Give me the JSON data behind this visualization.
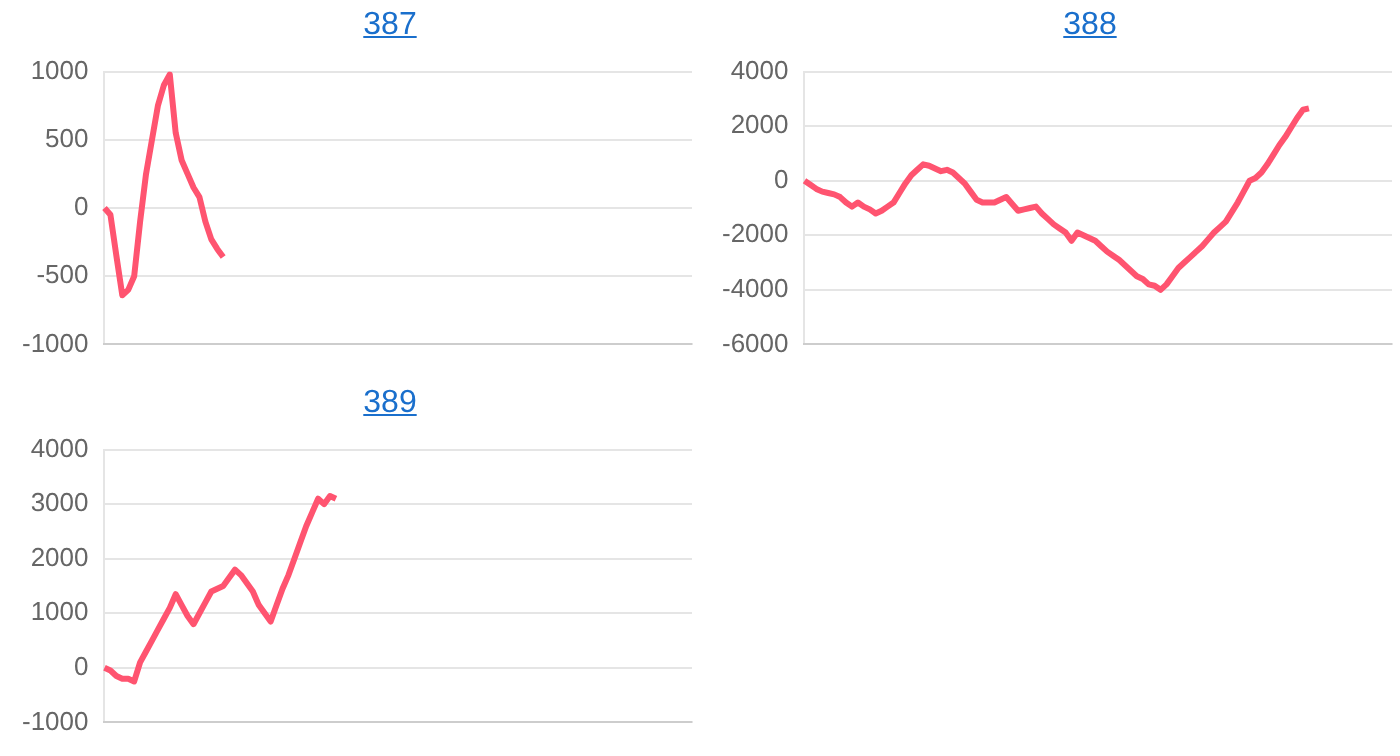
{
  "chart_data": [
    {
      "type": "line",
      "title": "387",
      "categories": [
        null,
        null,
        null,
        null,
        null,
        null,
        null,
        null,
        null,
        null,
        null,
        null,
        null,
        null,
        null,
        null,
        null,
        null,
        null,
        null,
        null,
        null,
        null,
        null,
        null,
        null,
        null,
        null,
        null,
        null,
        null,
        null,
        null,
        null,
        null,
        null,
        null,
        null,
        null,
        null,
        null,
        null,
        null,
        null,
        null,
        null,
        null,
        null,
        null,
        null,
        null,
        null,
        null,
        null,
        null,
        null,
        null,
        null,
        null,
        null,
        null,
        null,
        null,
        null,
        null,
        null,
        null,
        null,
        null,
        null,
        null,
        null,
        null,
        null,
        null,
        null,
        null,
        null,
        null,
        null,
        null,
        null,
        null,
        null,
        null,
        null,
        null,
        null,
        null,
        null,
        null,
        null,
        null,
        null,
        null,
        null,
        null,
        null,
        null,
        null
      ],
      "series": [
        {
          "color": "#ff5470",
          "values": [
            0,
            -50,
            -350,
            -640,
            -600,
            -500,
            -100,
            250,
            500,
            750,
            900,
            980,
            550,
            350,
            250,
            150,
            80,
            -100,
            -230,
            -300,
            -360,
            null,
            null,
            null,
            null,
            null,
            null,
            null,
            null,
            null,
            null,
            null,
            null,
            null,
            null,
            null,
            null,
            null,
            null,
            null,
            null,
            null,
            null,
            null,
            null,
            null,
            null,
            null,
            null,
            null,
            null,
            null,
            null,
            null,
            null,
            null,
            null,
            null,
            null,
            null,
            null,
            null,
            null,
            null,
            null,
            null,
            null,
            null,
            null,
            null,
            null,
            null,
            null,
            null,
            null,
            null,
            null,
            null,
            null,
            null,
            null,
            null,
            null,
            null,
            null,
            null,
            null,
            null,
            null,
            null,
            null,
            null,
            null,
            null,
            null,
            null,
            null,
            null,
            null,
            null
          ]
        }
      ],
      "ylim": [
        -1000,
        1000
      ],
      "yticks": [
        -1000,
        -500,
        0,
        500,
        1000
      ],
      "grid": "y",
      "tick_labels": "y",
      "legend": false,
      "marker": "none",
      "line_style": "solid"
    },
    {
      "type": "line",
      "title": "388",
      "categories": [
        null,
        null,
        null,
        null,
        null,
        null,
        null,
        null,
        null,
        null,
        null,
        null,
        null,
        null,
        null,
        null,
        null,
        null,
        null,
        null,
        null,
        null,
        null,
        null,
        null,
        null,
        null,
        null,
        null,
        null,
        null,
        null,
        null,
        null,
        null,
        null,
        null,
        null,
        null,
        null,
        null,
        null,
        null,
        null,
        null,
        null,
        null,
        null,
        null,
        null,
        null,
        null,
        null,
        null,
        null,
        null,
        null,
        null,
        null,
        null,
        null,
        null,
        null,
        null,
        null,
        null,
        null,
        null,
        null,
        null,
        null,
        null,
        null,
        null,
        null,
        null,
        null,
        null,
        null,
        null,
        null,
        null,
        null,
        null,
        null,
        null,
        null,
        null,
        null,
        null,
        null,
        null,
        null,
        null,
        null,
        null,
        null,
        null,
        null,
        null
      ],
      "series": [
        {
          "color": "#ff5470",
          "values": [
            0,
            -150,
            -300,
            -400,
            -450,
            -500,
            -600,
            -800,
            -950,
            -800,
            -950,
            -1050,
            -1200,
            -1100,
            -950,
            -800,
            -450,
            -100,
            200,
            400,
            600,
            550,
            450,
            350,
            400,
            300,
            100,
            -100,
            -400,
            -700,
            -800,
            -800,
            -800,
            -700,
            -600,
            -850,
            -1100,
            -1050,
            -1000,
            -950,
            -1200,
            -1400,
            -1600,
            -1750,
            -1900,
            -2200,
            -1900,
            -2000,
            -2100,
            -2200,
            -2400,
            -2600,
            -2750,
            -2900,
            -3100,
            -3300,
            -3500,
            -3600,
            -3800,
            -3850,
            -4000,
            -3800,
            -3500,
            -3200,
            -3000,
            -2800,
            -2600,
            -2400,
            -2150,
            -1900,
            -1700,
            -1500,
            -1150,
            -800,
            -400,
            0,
            100,
            300,
            600,
            950,
            1300,
            1600,
            1950,
            2300,
            2600,
            2650,
            null,
            null,
            null,
            null,
            null,
            null,
            null,
            null,
            null,
            null,
            null,
            null,
            null,
            null
          ]
        }
      ],
      "ylim": [
        -6000,
        4000
      ],
      "yticks": [
        -6000,
        -4000,
        -2000,
        0,
        2000,
        4000
      ],
      "grid": "y",
      "tick_labels": "y",
      "legend": false,
      "marker": "none",
      "line_style": "solid"
    },
    {
      "type": "line",
      "title": "389",
      "categories": [
        null,
        null,
        null,
        null,
        null,
        null,
        null,
        null,
        null,
        null,
        null,
        null,
        null,
        null,
        null,
        null,
        null,
        null,
        null,
        null,
        null,
        null,
        null,
        null,
        null,
        null,
        null,
        null,
        null,
        null,
        null,
        null,
        null,
        null,
        null,
        null,
        null,
        null,
        null,
        null,
        null,
        null,
        null,
        null,
        null,
        null,
        null,
        null,
        null,
        null,
        null,
        null,
        null,
        null,
        null,
        null,
        null,
        null,
        null,
        null,
        null,
        null,
        null,
        null,
        null,
        null,
        null,
        null,
        null,
        null,
        null,
        null,
        null,
        null,
        null,
        null,
        null,
        null,
        null,
        null,
        null,
        null,
        null,
        null,
        null,
        null,
        null,
        null,
        null,
        null,
        null,
        null,
        null,
        null,
        null,
        null,
        null,
        null,
        null,
        null
      ],
      "series": [
        {
          "color": "#ff5470",
          "values": [
            0,
            -50,
            -150,
            -200,
            -200,
            -250,
            100,
            300,
            500,
            700,
            900,
            1100,
            1350,
            1150,
            950,
            800,
            1000,
            1200,
            1400,
            1450,
            1500,
            1650,
            1800,
            1700,
            1550,
            1400,
            1150,
            1000,
            850,
            1150,
            1450,
            1700,
            2000,
            2300,
            2600,
            2850,
            3100,
            3000,
            3150,
            3100,
            null,
            null,
            null,
            null,
            null,
            null,
            null,
            null,
            null,
            null,
            null,
            null,
            null,
            null,
            null,
            null,
            null,
            null,
            null,
            null,
            null,
            null,
            null,
            null,
            null,
            null,
            null,
            null,
            null,
            null,
            null,
            null,
            null,
            null,
            null,
            null,
            null,
            null,
            null,
            null,
            null,
            null,
            null,
            null,
            null,
            null,
            null,
            null,
            null,
            null,
            null,
            null,
            null,
            null,
            null,
            null,
            null,
            null,
            null,
            null
          ]
        }
      ],
      "ylim": [
        -1000,
        4000
      ],
      "yticks": [
        -1000,
        0,
        1000,
        2000,
        3000,
        4000
      ],
      "grid": "y",
      "tick_labels": "y",
      "legend": false,
      "marker": "none",
      "line_style": "solid"
    }
  ]
}
